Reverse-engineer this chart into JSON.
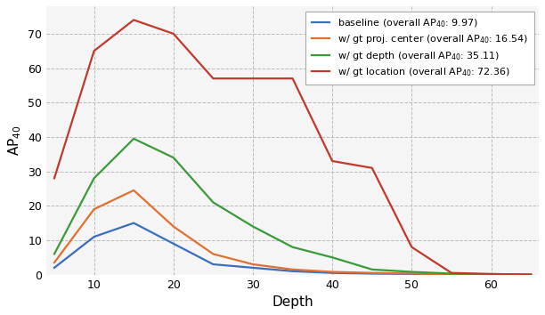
{
  "baseline": {
    "x": [
      5,
      10,
      15,
      20,
      25,
      30,
      35,
      40,
      45,
      50,
      55,
      60,
      65
    ],
    "y": [
      2,
      11,
      15,
      9,
      3,
      2,
      1,
      0.5,
      0.3,
      0.2,
      0.1,
      0.1,
      0.0
    ],
    "color": "#3b6dbf",
    "label": "baseline (overall AP$_{40}$: 9.97)"
  },
  "gt_proj_center": {
    "x": [
      5,
      10,
      15,
      20,
      25,
      30,
      35,
      40,
      45,
      50,
      55,
      60,
      65
    ],
    "y": [
      3.5,
      19,
      24.5,
      14,
      6,
      3,
      1.5,
      0.8,
      0.5,
      0.3,
      0.1,
      0.1,
      0.0
    ],
    "color": "#e07030",
    "label": "w/ gt proj. center (overall AP$_{40}$: 16.54)"
  },
  "gt_depth": {
    "x": [
      5,
      10,
      15,
      20,
      25,
      30,
      35,
      40,
      45,
      50,
      55,
      60,
      65
    ],
    "y": [
      6,
      28,
      39.5,
      34,
      21,
      14,
      8,
      5,
      1.5,
      0.8,
      0.3,
      0.1,
      0.0
    ],
    "color": "#3a9a3a",
    "label": "w/ gt depth (overall AP$_{40}$: 35.11)"
  },
  "gt_location": {
    "x": [
      5,
      10,
      15,
      20,
      25,
      30,
      35,
      40,
      45,
      50,
      55,
      60,
      65
    ],
    "y": [
      28,
      65,
      74,
      70,
      57,
      57,
      57,
      33,
      31,
      8,
      0.5,
      0.2,
      0.0
    ],
    "color": "#c0392b",
    "label": "w/ gt location (overall AP$_{40}$: 72.36)"
  },
  "xlabel": "Depth",
  "ylabel": "AP$_{40}$",
  "ylim": [
    0,
    78
  ],
  "xlim": [
    4,
    66
  ],
  "xticks": [
    10,
    20,
    30,
    40,
    50,
    60
  ],
  "yticks": [
    0,
    10,
    20,
    30,
    40,
    50,
    60,
    70
  ],
  "grid_color": "#bbbbbb",
  "bg_color": "#f5f5f5",
  "legend_loc": "upper right",
  "figsize": [
    6.12,
    3.54
  ],
  "dpi": 100
}
